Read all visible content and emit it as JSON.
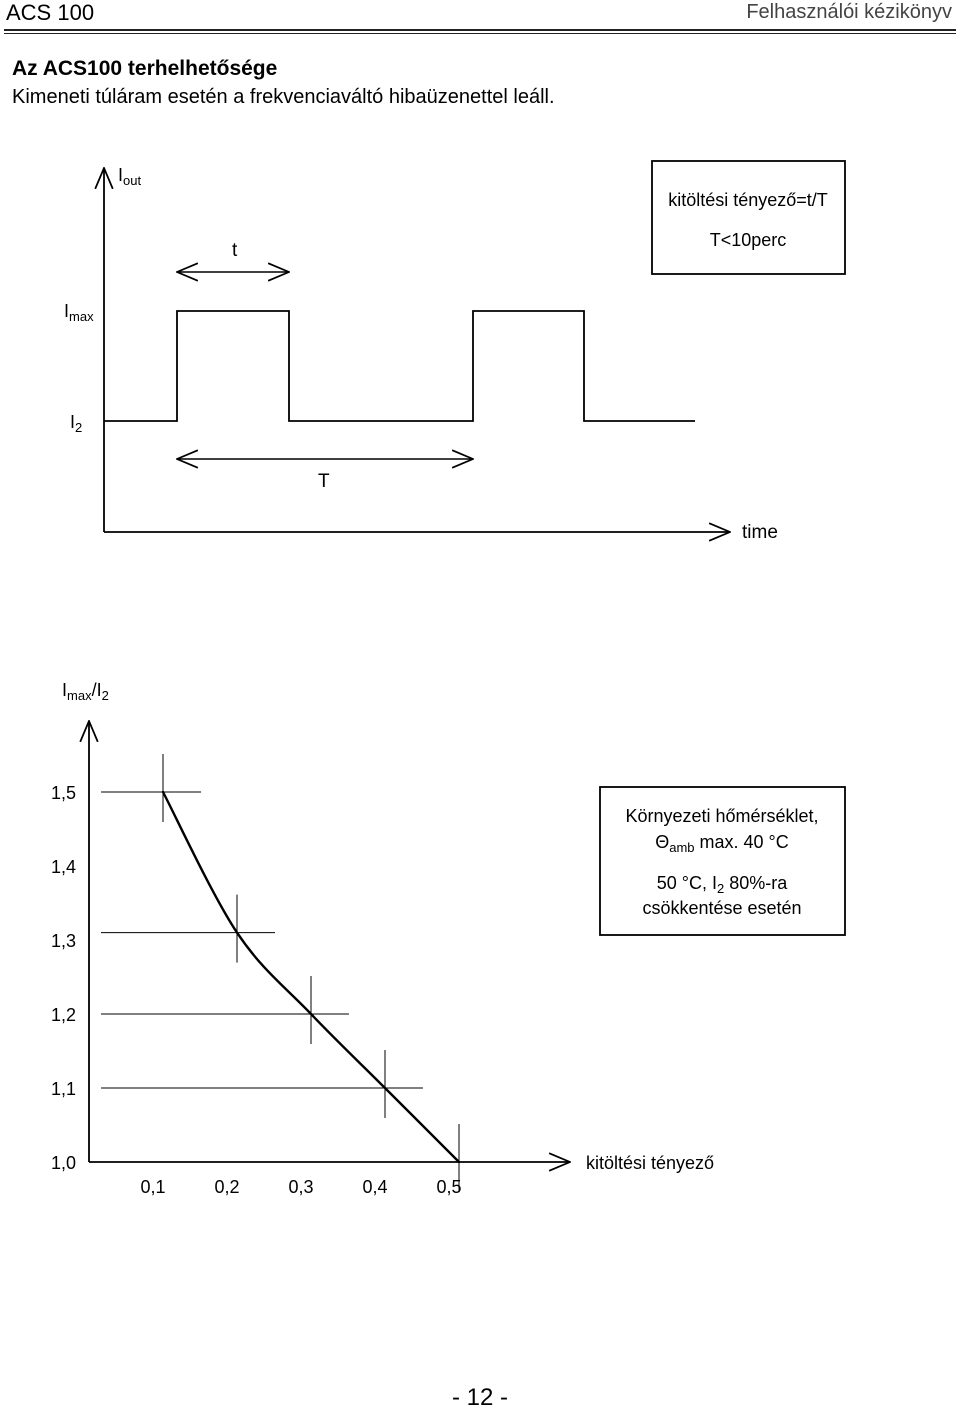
{
  "header": {
    "left": "ACS 100",
    "right": "Felhasználói kézikönyv"
  },
  "section": {
    "title": "Az ACS100 terhelhetősége",
    "subtitle": "Kimeneti túláram esetén a frekvenciaváltó hibaüzenettel leáll."
  },
  "fig1": {
    "y_axis_label": "I",
    "y_axis_sub": "out",
    "imax_label": "I",
    "imax_sub": "max",
    "i2_label": "I",
    "i2_sub": "2",
    "t_label": "t",
    "T_label": "T",
    "x_axis_label": "time",
    "box_line1": "kitöltési tényező=t/T",
    "box_line2": "T<10perc"
  },
  "fig2": {
    "y_axis_label_a": "I",
    "y_axis_sub_a": "max",
    "y_axis_slash": "/I",
    "y_axis_sub_b": "2",
    "x_axis_label": "kitöltési tényező",
    "box_line1": "Környezeti hőmérséklet,",
    "box_theta": "Θ",
    "box_theta_sub": "amb",
    "box_line2_rest": " max. 40 °C",
    "box_line3_a": "50 °C, I",
    "box_line3_sub": "2",
    "box_line3_b": " 80%-ra",
    "box_line4": "csökkentése esetén"
  },
  "chart_data": {
    "type": "line",
    "x_ticks": [
      "0,1",
      "0,2",
      "0,3",
      "0,4",
      "0,5"
    ],
    "y_ticks": [
      "1,0",
      "1,1",
      "1,2",
      "1,3",
      "1,4",
      "1,5"
    ],
    "series": [
      {
        "x": [
          0.1,
          0.2,
          0.3,
          0.4,
          0.5
        ],
        "y": [
          1.5,
          1.31,
          1.2,
          1.1,
          1.0
        ]
      }
    ],
    "xlabel": "kitöltési tényező",
    "ylabel": "Imax/I2",
    "xlim": [
      0,
      0.6
    ],
    "ylim": [
      1.0,
      1.6
    ]
  },
  "footer": {
    "page_number": "- 12 -"
  }
}
